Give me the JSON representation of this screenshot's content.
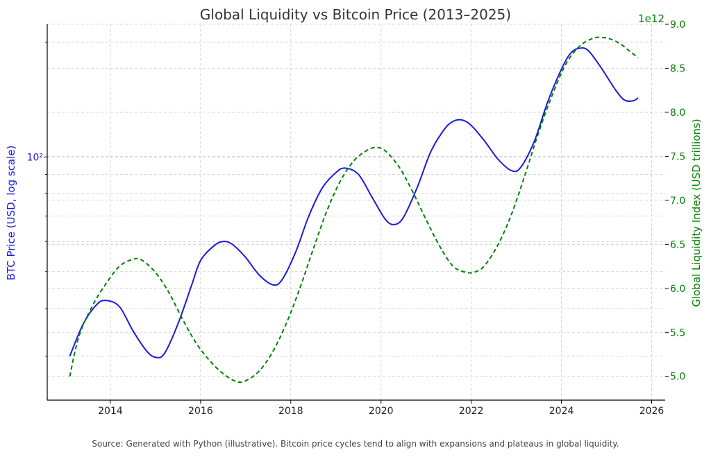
{
  "chart_data": {
    "type": "line",
    "title": "Global Liquidity vs Bitcoin Price (2013–2025)",
    "xlabel": "",
    "xlim": [
      2012.6,
      2026.3
    ],
    "x_ticks": [
      2014,
      2016,
      2018,
      2020,
      2022,
      2024,
      2026
    ],
    "x_tick_labels": [
      "2014",
      "2016",
      "2018",
      "2020",
      "2022",
      "2024",
      "2026"
    ],
    "grid": true,
    "legend": "none",
    "left_axis": {
      "label": "BTC Price (USD, log scale)",
      "scale": "log",
      "color": "#1a1adb",
      "ylim": [
        23,
        223
      ],
      "major_ticks": [
        100
      ],
      "major_tick_labels": [
        "10²"
      ],
      "minor_ticks": [
        30,
        40,
        50,
        60,
        70,
        80,
        90,
        200
      ]
    },
    "right_axis": {
      "label": "Global Liquidity Index (USD trillions)",
      "offset_text": "1e12",
      "scale": "linear",
      "color": "#008000",
      "ylim": [
        4.73,
        9.0
      ],
      "ticks": [
        5.0,
        5.5,
        6.0,
        6.5,
        7.0,
        7.5,
        8.0,
        8.5,
        9.0
      ],
      "tick_labels": [
        "5.0",
        "5.5",
        "6.0",
        "6.5",
        "7.0",
        "7.5",
        "8.0",
        "8.5",
        "9.0"
      ]
    },
    "series": [
      {
        "axis": "left",
        "style": "solid",
        "color": "#1a1adb",
        "x": [
          2013.1,
          2013.4,
          2013.7,
          2013.9,
          2014.2,
          2014.5,
          2014.8,
          2015.0,
          2015.2,
          2015.5,
          2015.8,
          2016.0,
          2016.3,
          2016.5,
          2016.7,
          2017.0,
          2017.3,
          2017.6,
          2017.8,
          2018.1,
          2018.4,
          2018.7,
          2019.0,
          2019.2,
          2019.5,
          2019.8,
          2020.1,
          2020.3,
          2020.5,
          2020.8,
          2021.1,
          2021.4,
          2021.6,
          2021.8,
          2022.0,
          2022.3,
          2022.6,
          2022.9,
          2023.1,
          2023.4,
          2023.7,
          2024.0,
          2024.2,
          2024.4,
          2024.6,
          2024.9,
          2025.2,
          2025.4,
          2025.6,
          2025.7
        ],
        "y": [
          30.0,
          36.5,
          41.0,
          42.0,
          40.5,
          35.0,
          31.0,
          29.8,
          30.5,
          36.5,
          46.0,
          53.5,
          58.5,
          60.0,
          59.0,
          54.5,
          49.0,
          46.2,
          47.5,
          56.0,
          70.0,
          83.0,
          91.0,
          93.5,
          90.0,
          78.5,
          68.5,
          66.5,
          69.5,
          83.0,
          103.0,
          118.0,
          124.0,
          125.0,
          121.0,
          110.0,
          98.5,
          92.0,
          94.0,
          110.0,
          140.0,
          170.0,
          187.0,
          193.0,
          190.0,
          170.0,
          150.0,
          141.0,
          140.5,
          143.0
        ]
      },
      {
        "axis": "right",
        "style": "dashed",
        "color": "#008000",
        "x": [
          2013.1,
          2013.3,
          2013.6,
          2013.9,
          2014.2,
          2014.5,
          2014.7,
          2015.0,
          2015.3,
          2015.6,
          2015.9,
          2016.2,
          2016.5,
          2016.8,
          2017.0,
          2017.3,
          2017.6,
          2017.9,
          2018.2,
          2018.5,
          2018.8,
          2019.1,
          2019.4,
          2019.7,
          2019.9,
          2020.1,
          2020.4,
          2020.7,
          2021.0,
          2021.3,
          2021.6,
          2021.9,
          2022.1,
          2022.3,
          2022.6,
          2022.9,
          2023.2,
          2023.5,
          2023.8,
          2024.1,
          2024.4,
          2024.7,
          2024.9,
          2025.1,
          2025.3,
          2025.5,
          2025.7
        ],
        "y": [
          5.0,
          5.45,
          5.8,
          6.05,
          6.25,
          6.33,
          6.32,
          6.18,
          5.95,
          5.65,
          5.38,
          5.18,
          5.03,
          4.94,
          4.95,
          5.06,
          5.28,
          5.6,
          6.0,
          6.45,
          6.88,
          7.22,
          7.45,
          7.57,
          7.6,
          7.56,
          7.38,
          7.1,
          6.78,
          6.48,
          6.25,
          6.18,
          6.19,
          6.26,
          6.5,
          6.85,
          7.3,
          7.78,
          8.2,
          8.55,
          8.75,
          8.84,
          8.85,
          8.83,
          8.78,
          8.7,
          8.62
        ]
      }
    ]
  },
  "source_text": "Source: Generated with Python (illustrative). Bitcoin price cycles tend to align with expansions and plateaus in global liquidity."
}
